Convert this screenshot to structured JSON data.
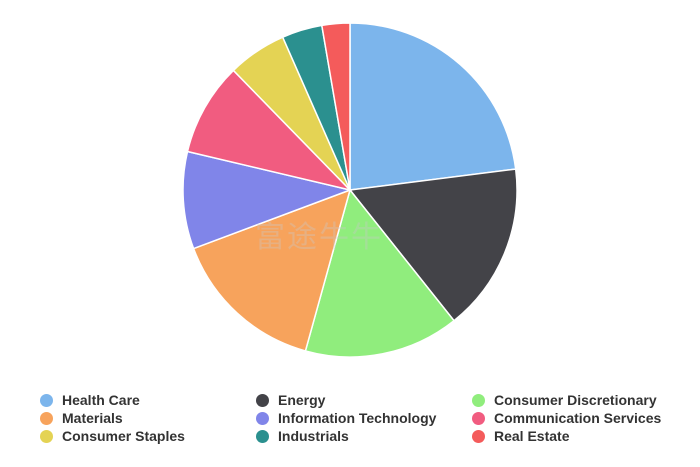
{
  "watermark": "富途牛牛",
  "chart_data": {
    "type": "pie",
    "start_angle": "top, clockwise",
    "legend_position": "bottom",
    "categories": [
      "Health Care",
      "Energy",
      "Consumer Discretionary",
      "Materials",
      "Information Technology",
      "Communication Services",
      "Consumer Staples",
      "Industrials",
      "Real Estate"
    ],
    "values": [
      23.0,
      16.3,
      15.0,
      15.0,
      9.4,
      9.0,
      5.7,
      3.9,
      2.7
    ],
    "colors": [
      "#7cb5ec",
      "#434348",
      "#90ed7d",
      "#f7a35c",
      "#8085e9",
      "#f15c80",
      "#e4d354",
      "#2b908f",
      "#f45b5b"
    ],
    "legend_order": [
      "Health Care",
      "Energy",
      "Consumer Discretionary",
      "Materials",
      "Information Technology",
      "Communication Services",
      "Consumer Staples",
      "Industrials",
      "Real Estate"
    ]
  }
}
